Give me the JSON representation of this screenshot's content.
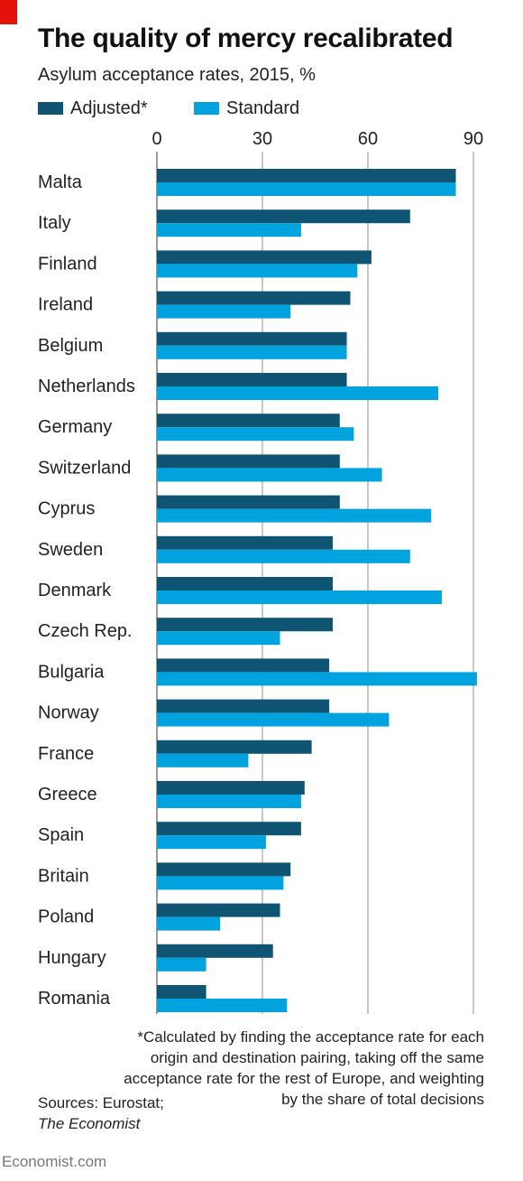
{
  "header": {
    "title": "The quality of mercy recalibrated",
    "subtitle": "Asylum acceptance rates, 2015, %"
  },
  "legend": {
    "items": [
      {
        "label": "Adjusted*",
        "color": "#0f5473"
      },
      {
        "label": "Standard",
        "color": "#00a3dd"
      }
    ]
  },
  "footnote": "*Calculated by finding the acceptance rate for each origin and destination pairing, taking off the same acceptance rate for the rest of Europe, and weighting by the share of total decisions",
  "sources": {
    "prefix": "Sources: Eurostat;",
    "italic": "The Economist"
  },
  "brand": "Economist.com",
  "chart_data": {
    "type": "bar",
    "orientation": "horizontal",
    "title": "The quality of mercy recalibrated",
    "subtitle": "Asylum acceptance rates, 2015, %",
    "xlim": [
      0,
      90
    ],
    "xticks": [
      0,
      30,
      60,
      90
    ],
    "grid": true,
    "legend_position": "top-left",
    "categories": [
      "Malta",
      "Italy",
      "Finland",
      "Ireland",
      "Belgium",
      "Netherlands",
      "Germany",
      "Switzerland",
      "Cyprus",
      "Sweden",
      "Denmark",
      "Czech Rep.",
      "Bulgaria",
      "Norway",
      "France",
      "Greece",
      "Spain",
      "Britain",
      "Poland",
      "Hungary",
      "Romania"
    ],
    "series": [
      {
        "name": "Adjusted*",
        "color": "#0f5473",
        "values": [
          85,
          72,
          61,
          55,
          54,
          54,
          52,
          52,
          52,
          50,
          50,
          50,
          49,
          49,
          44,
          42,
          41,
          38,
          35,
          33,
          14
        ]
      },
      {
        "name": "Standard",
        "color": "#00a3dd",
        "values": [
          85,
          41,
          57,
          38,
          54,
          80,
          56,
          64,
          78,
          72,
          81,
          35,
          91,
          66,
          26,
          41,
          31,
          36,
          18,
          14,
          37
        ]
      }
    ]
  }
}
